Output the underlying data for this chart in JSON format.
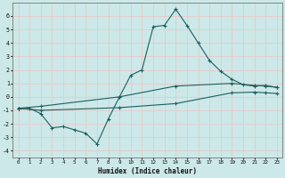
{
  "xlabel": "Humidex (Indice chaleur)",
  "background_color": "#cce8e8",
  "grid_color": "#e8c8c8",
  "line_color": "#1a6060",
  "xlim": [
    -0.5,
    23.5
  ],
  "ylim": [
    -4.5,
    7.0
  ],
  "xticks": [
    0,
    1,
    2,
    3,
    4,
    5,
    6,
    7,
    8,
    9,
    10,
    11,
    12,
    13,
    14,
    15,
    16,
    17,
    18,
    19,
    20,
    21,
    22,
    23
  ],
  "yticks": [
    -4,
    -3,
    -2,
    -1,
    0,
    1,
    2,
    3,
    4,
    5,
    6
  ],
  "line1_x": [
    0,
    1,
    2,
    3,
    4,
    5,
    6,
    7,
    8,
    9,
    10,
    11,
    12,
    13,
    14,
    15,
    16,
    17,
    18,
    19,
    20,
    21,
    22,
    23
  ],
  "line1_y": [
    -0.9,
    -0.85,
    -1.25,
    -2.3,
    -2.2,
    -2.45,
    -2.7,
    -3.5,
    -1.65,
    0.0,
    1.6,
    2.0,
    5.2,
    5.3,
    6.5,
    5.3,
    4.0,
    2.7,
    1.9,
    1.3,
    0.9,
    0.8,
    0.85,
    0.7
  ],
  "line2_x": [
    0,
    2,
    9,
    14,
    19,
    21,
    22,
    23
  ],
  "line2_y": [
    -0.85,
    -0.7,
    0.0,
    0.8,
    1.0,
    0.85,
    0.8,
    0.7
  ],
  "line3_x": [
    0,
    2,
    9,
    14,
    19,
    21,
    22,
    23
  ],
  "line3_y": [
    -0.85,
    -1.0,
    -0.8,
    -0.5,
    0.3,
    0.35,
    0.3,
    0.25
  ]
}
